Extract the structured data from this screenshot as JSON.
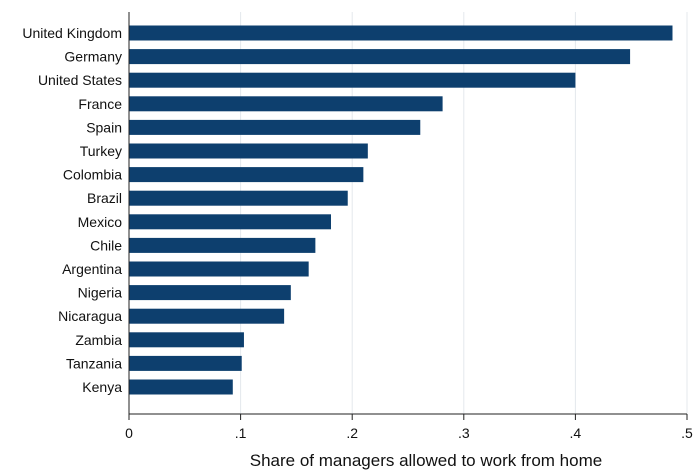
{
  "chart_data": {
    "type": "bar",
    "orientation": "horizontal",
    "categories": [
      "United Kingdom",
      "Germany",
      "United States",
      "France",
      "Spain",
      "Turkey",
      "Colombia",
      "Brazil",
      "Mexico",
      "Chile",
      "Argentina",
      "Nigeria",
      "Nicaragua",
      "Zambia",
      "Tanzania",
      "Kenya"
    ],
    "values": [
      0.487,
      0.449,
      0.4,
      0.281,
      0.261,
      0.214,
      0.21,
      0.196,
      0.181,
      0.167,
      0.161,
      0.145,
      0.139,
      0.103,
      0.101,
      0.093
    ],
    "title": "",
    "xlabel": "Share of managers allowed to work from home",
    "ylabel": "",
    "xlim": [
      0,
      0.5
    ],
    "xticks": [
      0,
      0.1,
      0.2,
      0.3,
      0.4,
      0.5
    ],
    "xtick_labels": [
      "0",
      ".1",
      ".2",
      ".3",
      ".4",
      ".5"
    ],
    "grid": "vertical",
    "bar_color": "#0d3f6e"
  }
}
